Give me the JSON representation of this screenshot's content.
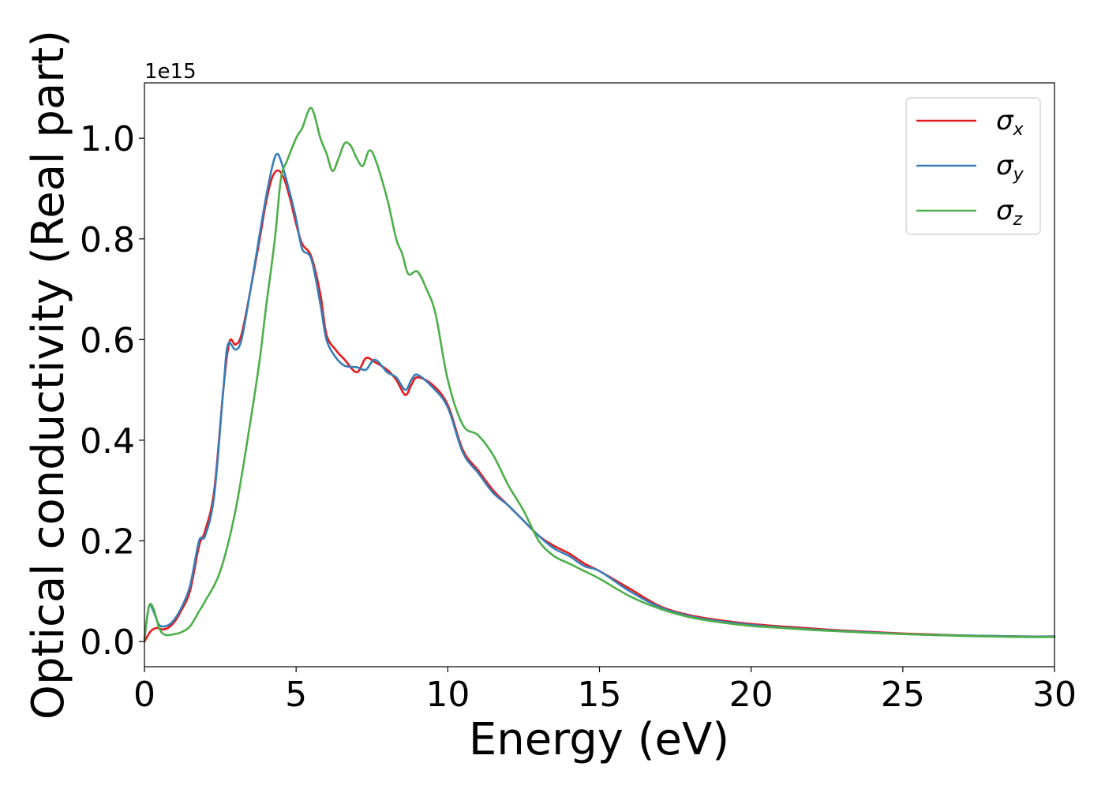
{
  "chart_data": {
    "type": "line",
    "xlabel": "Energy (eV)",
    "ylabel": "Optical conductivity (Real part)",
    "y_offset_text": "1e15",
    "xlim": [
      0,
      30
    ],
    "ylim": [
      -0.05,
      1.11
    ],
    "x_ticks": [
      "0",
      "5",
      "10",
      "15",
      "20",
      "25",
      "30"
    ],
    "y_ticks": [
      "0.0",
      "0.2",
      "0.4",
      "0.6",
      "0.8",
      "1.0"
    ],
    "grid": false,
    "legend_position": "top-right",
    "series": [
      {
        "name": "σx",
        "symbol": "σ",
        "subscript": "x",
        "color": "#e41a1c",
        "points": [
          [
            0,
            0
          ],
          [
            0.2,
            0.02
          ],
          [
            0.4,
            0.027
          ],
          [
            0.6,
            0.024
          ],
          [
            0.8,
            0.028
          ],
          [
            1,
            0.04
          ],
          [
            1.2,
            0.06
          ],
          [
            1.5,
            0.1
          ],
          [
            1.8,
            0.19
          ],
          [
            2,
            0.22
          ],
          [
            2.3,
            0.3
          ],
          [
            2.6,
            0.5
          ],
          [
            2.8,
            0.595
          ],
          [
            3,
            0.59
          ],
          [
            3.2,
            0.61
          ],
          [
            3.5,
            0.7
          ],
          [
            3.8,
            0.8
          ],
          [
            4,
            0.87
          ],
          [
            4.2,
            0.92
          ],
          [
            4.4,
            0.936
          ],
          [
            4.6,
            0.92
          ],
          [
            4.8,
            0.88
          ],
          [
            5,
            0.83
          ],
          [
            5.2,
            0.79
          ],
          [
            5.5,
            0.765
          ],
          [
            5.8,
            0.69
          ],
          [
            6,
            0.61
          ],
          [
            6.3,
            0.58
          ],
          [
            6.6,
            0.56
          ],
          [
            7,
            0.535
          ],
          [
            7.3,
            0.563
          ],
          [
            7.6,
            0.555
          ],
          [
            8,
            0.54
          ],
          [
            8.3,
            0.52
          ],
          [
            8.6,
            0.49
          ],
          [
            8.8,
            0.51
          ],
          [
            9,
            0.525
          ],
          [
            9.5,
            0.51
          ],
          [
            10,
            0.47
          ],
          [
            10.5,
            0.38
          ],
          [
            11,
            0.34
          ],
          [
            11.5,
            0.3
          ],
          [
            12,
            0.27
          ],
          [
            12.5,
            0.24
          ],
          [
            13,
            0.21
          ],
          [
            13.5,
            0.19
          ],
          [
            14,
            0.175
          ],
          [
            14.5,
            0.155
          ],
          [
            15,
            0.14
          ],
          [
            16,
            0.105
          ],
          [
            17,
            0.07
          ],
          [
            18,
            0.052
          ],
          [
            19,
            0.042
          ],
          [
            20,
            0.035
          ],
          [
            21,
            0.03
          ],
          [
            22,
            0.026
          ],
          [
            23,
            0.022
          ],
          [
            24,
            0.019
          ],
          [
            25,
            0.016
          ],
          [
            26,
            0.014
          ],
          [
            27,
            0.012
          ],
          [
            28,
            0.011
          ],
          [
            29,
            0.01
          ],
          [
            30,
            0.01
          ]
        ]
      },
      {
        "name": "σy",
        "symbol": "σ",
        "subscript": "y",
        "color": "#377eb8",
        "points": [
          [
            0,
            0.005
          ],
          [
            0.15,
            0.07
          ],
          [
            0.3,
            0.06
          ],
          [
            0.5,
            0.032
          ],
          [
            0.8,
            0.033
          ],
          [
            1,
            0.045
          ],
          [
            1.2,
            0.065
          ],
          [
            1.5,
            0.11
          ],
          [
            1.8,
            0.2
          ],
          [
            2,
            0.21
          ],
          [
            2.3,
            0.29
          ],
          [
            2.6,
            0.5
          ],
          [
            2.75,
            0.59
          ],
          [
            3,
            0.58
          ],
          [
            3.2,
            0.6
          ],
          [
            3.5,
            0.7
          ],
          [
            3.8,
            0.81
          ],
          [
            4,
            0.88
          ],
          [
            4.2,
            0.94
          ],
          [
            4.35,
            0.968
          ],
          [
            4.5,
            0.955
          ],
          [
            4.8,
            0.89
          ],
          [
            5,
            0.84
          ],
          [
            5.2,
            0.78
          ],
          [
            5.5,
            0.76
          ],
          [
            5.8,
            0.67
          ],
          [
            6,
            0.6
          ],
          [
            6.3,
            0.565
          ],
          [
            6.6,
            0.548
          ],
          [
            7,
            0.545
          ],
          [
            7.3,
            0.54
          ],
          [
            7.6,
            0.56
          ],
          [
            8,
            0.535
          ],
          [
            8.3,
            0.525
          ],
          [
            8.6,
            0.5
          ],
          [
            8.8,
            0.52
          ],
          [
            9,
            0.53
          ],
          [
            9.5,
            0.505
          ],
          [
            10,
            0.465
          ],
          [
            10.5,
            0.375
          ],
          [
            11,
            0.335
          ],
          [
            11.5,
            0.295
          ],
          [
            12,
            0.27
          ],
          [
            12.5,
            0.24
          ],
          [
            13,
            0.21
          ],
          [
            13.5,
            0.185
          ],
          [
            14,
            0.17
          ],
          [
            14.5,
            0.15
          ],
          [
            15,
            0.14
          ],
          [
            16,
            0.1
          ],
          [
            17,
            0.068
          ],
          [
            18,
            0.05
          ],
          [
            19,
            0.04
          ],
          [
            20,
            0.033
          ],
          [
            21,
            0.028
          ],
          [
            22,
            0.024
          ],
          [
            23,
            0.021
          ],
          [
            24,
            0.018
          ],
          [
            25,
            0.015
          ],
          [
            26,
            0.013
          ],
          [
            27,
            0.012
          ],
          [
            28,
            0.011
          ],
          [
            29,
            0.01
          ],
          [
            30,
            0.01
          ]
        ]
      },
      {
        "name": "σz",
        "symbol": "σ",
        "subscript": "z",
        "color": "#4daf4a",
        "points": [
          [
            0,
            0.005
          ],
          [
            0.15,
            0.07
          ],
          [
            0.3,
            0.065
          ],
          [
            0.5,
            0.025
          ],
          [
            0.7,
            0.013
          ],
          [
            1,
            0.015
          ],
          [
            1.2,
            0.018
          ],
          [
            1.5,
            0.03
          ],
          [
            1.8,
            0.06
          ],
          [
            2,
            0.08
          ],
          [
            2.5,
            0.14
          ],
          [
            3,
            0.26
          ],
          [
            3.5,
            0.44
          ],
          [
            3.8,
            0.56
          ],
          [
            4,
            0.66
          ],
          [
            4.3,
            0.8
          ],
          [
            4.5,
            0.92
          ],
          [
            4.7,
            0.955
          ],
          [
            5,
            1.0
          ],
          [
            5.2,
            1.02
          ],
          [
            5.5,
            1.06
          ],
          [
            5.8,
            1.0
          ],
          [
            6,
            0.97
          ],
          [
            6.2,
            0.935
          ],
          [
            6.4,
            0.96
          ],
          [
            6.6,
            0.99
          ],
          [
            6.8,
            0.985
          ],
          [
            7,
            0.96
          ],
          [
            7.2,
            0.945
          ],
          [
            7.4,
            0.975
          ],
          [
            7.6,
            0.96
          ],
          [
            8,
            0.88
          ],
          [
            8.3,
            0.8
          ],
          [
            8.5,
            0.77
          ],
          [
            8.7,
            0.73
          ],
          [
            9,
            0.735
          ],
          [
            9.3,
            0.7
          ],
          [
            9.6,
            0.65
          ],
          [
            10,
            0.52
          ],
          [
            10.5,
            0.43
          ],
          [
            11,
            0.41
          ],
          [
            11.5,
            0.37
          ],
          [
            12,
            0.31
          ],
          [
            12.5,
            0.26
          ],
          [
            13,
            0.2
          ],
          [
            13.5,
            0.17
          ],
          [
            14,
            0.155
          ],
          [
            14.5,
            0.14
          ],
          [
            15,
            0.125
          ],
          [
            16,
            0.09
          ],
          [
            17,
            0.065
          ],
          [
            18,
            0.048
          ],
          [
            19,
            0.038
          ],
          [
            20,
            0.031
          ],
          [
            21,
            0.027
          ],
          [
            22,
            0.023
          ],
          [
            23,
            0.02
          ],
          [
            24,
            0.017
          ],
          [
            25,
            0.015
          ],
          [
            26,
            0.013
          ],
          [
            27,
            0.011
          ],
          [
            28,
            0.01
          ],
          [
            29,
            0.009
          ],
          [
            30,
            0.009
          ]
        ]
      }
    ]
  }
}
